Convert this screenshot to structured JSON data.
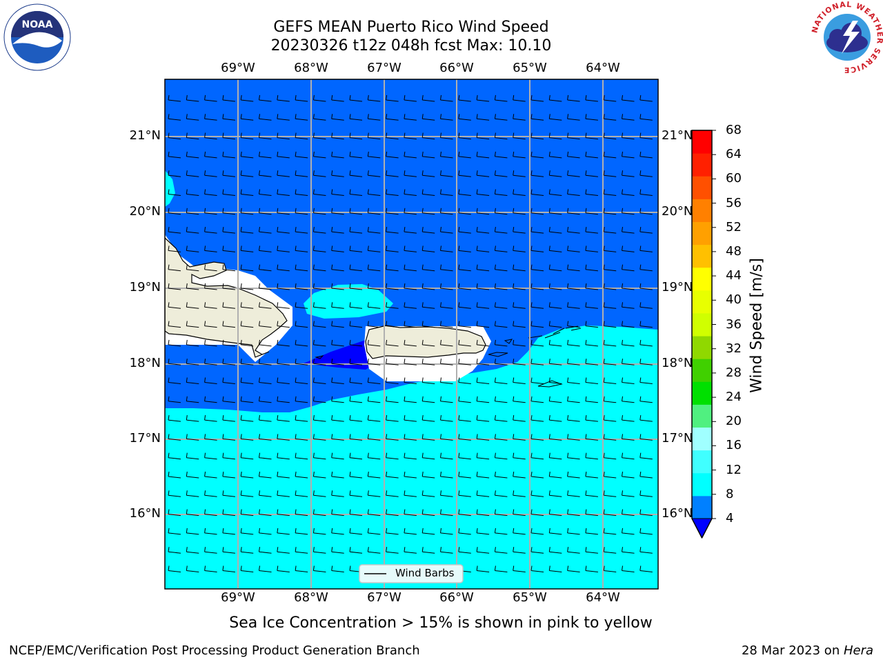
{
  "title": {
    "line1": "GEFS MEAN Puerto Rico Wind Speed",
    "line2": "20230326 t12z 048h fcst   Max: 10.10"
  },
  "axes": {
    "longitude_labels": [
      "69°W",
      "68°W",
      "67°W",
      "66°W",
      "65°W",
      "64°W"
    ],
    "latitude_labels": [
      "21°N",
      "20°N",
      "19°N",
      "18°N",
      "17°N",
      "16°N"
    ],
    "lon_range": [
      -70.0,
      -63.25
    ],
    "lat_range": [
      15.0,
      21.75
    ],
    "grid": true
  },
  "legend": {
    "label": "Wind Barbs",
    "placement": "bottom-center"
  },
  "colorbar": {
    "label": "Wind Speed [m/s]",
    "ticks": [
      "68",
      "64",
      "60",
      "56",
      "52",
      "48",
      "44",
      "40",
      "36",
      "32",
      "28",
      "24",
      "20",
      "16",
      "12",
      "8",
      "4"
    ],
    "levels": [
      4,
      8,
      12,
      16,
      20,
      24,
      28,
      32,
      36,
      40,
      44,
      48,
      52,
      56,
      60,
      64,
      68
    ],
    "colors": [
      "#0080ff",
      "#00ffff",
      "#40ffff",
      "#a0ffff",
      "#50f080",
      "#00e000",
      "#40d000",
      "#90d800",
      "#d0ff00",
      "#e8ff00",
      "#ffff00",
      "#ffc000",
      "#ffa000",
      "#ff8000",
      "#ff5000",
      "#ff2000",
      "#ff0000"
    ],
    "under_color": "#0000ff"
  },
  "map_fill": {
    "main_color": "#0066ff",
    "cyan_color": "#00ffff",
    "min_color": "#0000ff",
    "land_color": "#eeedda"
  },
  "caption": "Sea Ice Concentration > 15% is shown in pink to yellow",
  "footer": {
    "left": "NCEP/EMC/Verification Post Processing Product Generation Branch",
    "right_date": "28 Mar 2023 on ",
    "right_host": "Hera"
  },
  "logos": {
    "noaa": "NOAA",
    "nws_ring": "NATIONAL WEATHER SERVICE"
  },
  "chart_data": {
    "type": "heatmap",
    "title": "GEFS MEAN Puerto Rico Wind Speed",
    "subtitle": "20230326 t12z 048h fcst   Max: 10.10",
    "xlabel": "",
    "ylabel": "",
    "colorbar_label": "Wind Speed [m/s]",
    "x_ticks": [
      "69°W",
      "68°W",
      "67°W",
      "66°W",
      "65°W",
      "64°W"
    ],
    "y_ticks": [
      "21°N",
      "20°N",
      "19°N",
      "18°N",
      "17°N",
      "16°N"
    ],
    "value_range": [
      4,
      68
    ],
    "max_value": 10.1,
    "series": [
      {
        "name": "Wind Barbs",
        "values": []
      }
    ]
  }
}
